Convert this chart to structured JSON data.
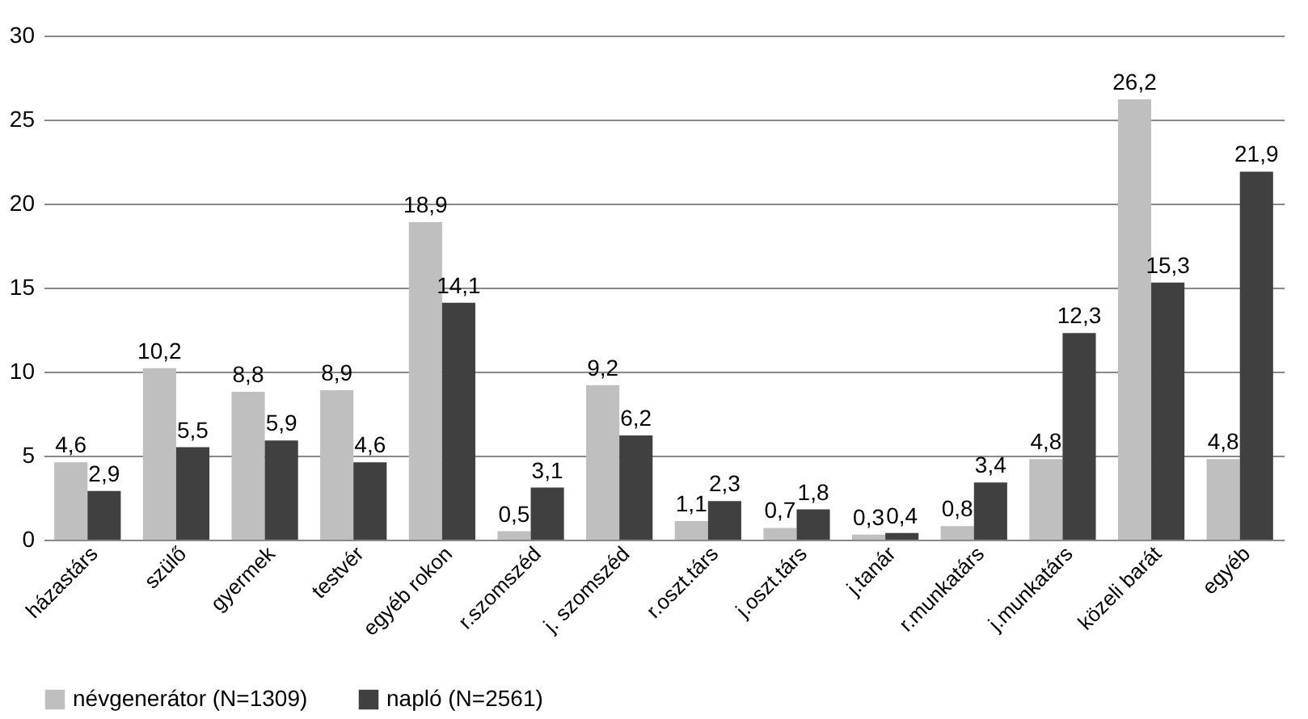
{
  "chart_data": {
    "type": "bar",
    "categories": [
      "házastárs",
      "szülő",
      "gyermek",
      "testvér",
      "egyéb rokon",
      "r.szomszéd",
      "j. szomszéd",
      "r.oszt.társ",
      "j.oszt.társ",
      "j.tanár",
      "r.munkatárs",
      "j.munkatárs",
      "közeli barát",
      "egyéb"
    ],
    "series": [
      {
        "name": "névgenerátor (N=1309)",
        "color": "#bfbfbf",
        "values": [
          4.6,
          10.2,
          8.8,
          8.9,
          18.9,
          0.5,
          9.2,
          1.1,
          0.7,
          0.3,
          0.8,
          4.8,
          26.2,
          4.8
        ],
        "value_labels": [
          "4,6",
          "10,2",
          "8,8",
          "8,9",
          "18,9",
          "0,5",
          "9,2",
          "1,1",
          "0,7",
          "0,3",
          "0,8",
          "4,8",
          "26,2",
          "4,8"
        ]
      },
      {
        "name": "napló (N=2561)",
        "color": "#404040",
        "values": [
          2.9,
          5.5,
          5.9,
          4.6,
          14.1,
          3.1,
          6.2,
          2.3,
          1.8,
          0.4,
          3.4,
          12.3,
          15.3,
          21.9
        ],
        "value_labels": [
          "2,9",
          "5,5",
          "5,9",
          "4,6",
          "14,1",
          "3,1",
          "6,2",
          "2,3",
          "1,8",
          "0,4",
          "3,4",
          "12,3",
          "15,3",
          "21,9"
        ]
      }
    ],
    "ylim": [
      0,
      30
    ],
    "yticks": [
      0,
      5,
      10,
      15,
      20,
      25,
      30
    ],
    "grid": "y",
    "legend": "bottom"
  }
}
